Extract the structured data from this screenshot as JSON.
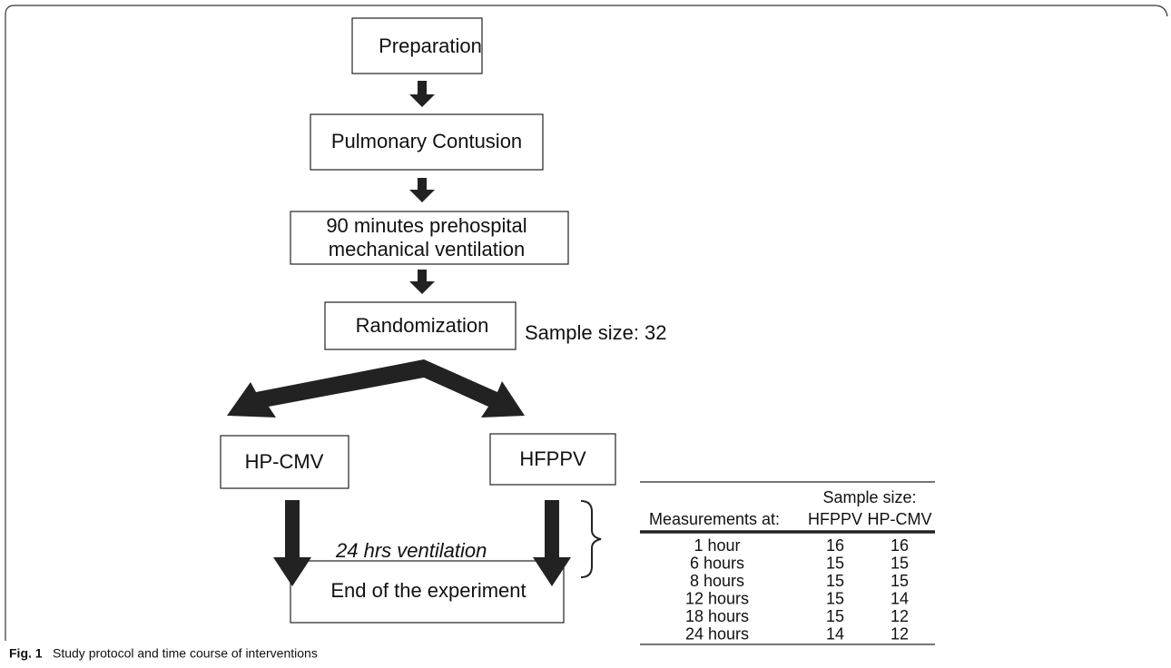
{
  "nodes": [
    {
      "label": "Preparation"
    },
    {
      "label": "Pulmonary Contusion"
    },
    {
      "lines": [
        "90 minutes prehospital",
        "mechanical ventilation"
      ]
    },
    {
      "label": "Randomization"
    },
    {
      "label": "HP-CMV"
    },
    {
      "label": "HFPPV"
    },
    {
      "label": "End of the experiment"
    }
  ],
  "annotations": {
    "sample_size": "Sample size: 32",
    "ventilation": "24 hrs ventilation"
  },
  "table": {
    "group_header": "Sample size:",
    "columns": [
      "Measurements at:",
      "HFPPV",
      "HP-CMV"
    ],
    "rows": [
      [
        "1 hour",
        "16",
        "16"
      ],
      [
        "6 hours",
        "15",
        "15"
      ],
      [
        "8 hours",
        "15",
        "15"
      ],
      [
        "12 hours",
        "15",
        "14"
      ],
      [
        "18 hours",
        "15",
        "12"
      ],
      [
        "24 hours",
        "14",
        "12"
      ]
    ]
  },
  "caption": {
    "label": "Fig. 1",
    "text": "Study protocol and time course of interventions"
  }
}
